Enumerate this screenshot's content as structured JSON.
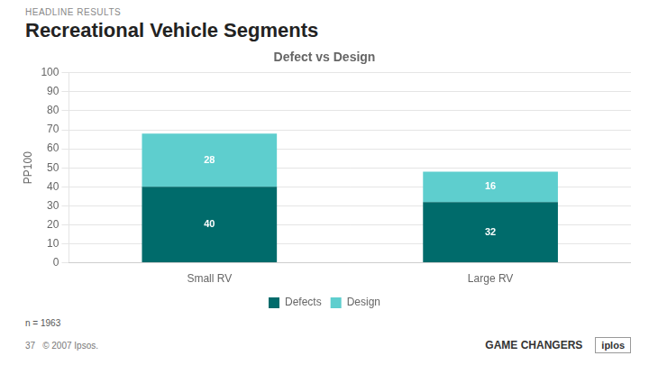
{
  "chart_data": {
    "type": "bar",
    "title": "Recreational Vehicle Segments",
    "subtitle": "Defect vs Design",
    "y_label": "PP100",
    "categories": [
      "Small RV",
      "Large RV"
    ],
    "series": [
      {
        "name": "Defects",
        "color": "#006b6b",
        "values": [
          40,
          32
        ]
      },
      {
        "name": "Design",
        "color": "#5ecece",
        "values": [
          28,
          16
        ]
      }
    ],
    "ylim": [
      0,
      100
    ],
    "yticks": [
      0,
      10,
      20,
      30,
      40,
      50,
      60,
      70,
      80,
      90,
      100
    ],
    "stacked": true,
    "data_labels": true,
    "grid": true,
    "legend": "bottom",
    "annotations": [
      "HEADLINE RESULTS",
      "n = 1963",
      "37",
      "© 2007 Ipsos.",
      "GAME CHANGERS",
      "iplos"
    ]
  }
}
